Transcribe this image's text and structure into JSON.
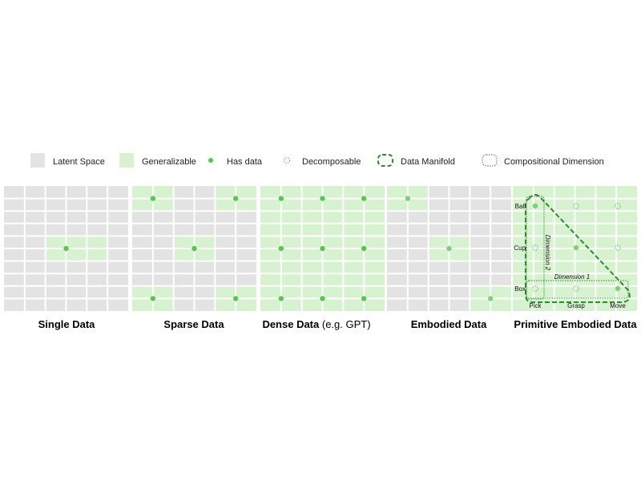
{
  "legend": {
    "latent_space": "Latent Space",
    "generalizable": "Generalizable",
    "has_data": "Has data",
    "decomposable": "Decomposable",
    "data_manifold": "Data Manifold",
    "compositional_dimension": "Compositional Dimension"
  },
  "colors": {
    "latent": "#e3e3e3",
    "generalizable": "#d6f2cf",
    "dot": "#52c84f",
    "dot_light": "#7fd175",
    "manifold": "#2e8b2e",
    "grid_line": "#ffffff"
  },
  "panels": [
    {
      "id": "single",
      "caption": "Single Data",
      "caption_suffix": "",
      "green_rects": [
        [
          2,
          4,
          3,
          2
        ]
      ],
      "dots": [
        [
          3,
          5
        ]
      ]
    },
    {
      "id": "sparse",
      "caption": "Sparse Data",
      "caption_suffix": "",
      "green_rects": [
        [
          0,
          0,
          2,
          2
        ],
        [
          4,
          0,
          2,
          2
        ],
        [
          2,
          4,
          2,
          2
        ],
        [
          0,
          8,
          2,
          2
        ],
        [
          4,
          8,
          2,
          2
        ]
      ],
      "dots": [
        [
          1,
          1
        ],
        [
          5,
          1
        ],
        [
          3,
          5
        ],
        [
          1,
          9
        ],
        [
          5,
          9
        ]
      ]
    },
    {
      "id": "dense",
      "caption": "Dense Data",
      "caption_suffix": " (e.g. GPT)",
      "green_rects": [
        [
          0,
          0,
          6,
          10
        ]
      ],
      "dots": [
        [
          1,
          1
        ],
        [
          3,
          1
        ],
        [
          5,
          1
        ],
        [
          1,
          5
        ],
        [
          3,
          5
        ],
        [
          5,
          5
        ],
        [
          1,
          9
        ],
        [
          3,
          9
        ],
        [
          5,
          9
        ]
      ]
    },
    {
      "id": "embodied",
      "caption": "Embodied Data",
      "caption_suffix": "",
      "green_rects": [
        [
          0,
          0,
          2,
          2
        ],
        [
          2,
          4,
          2,
          2
        ],
        [
          4,
          8,
          2,
          2
        ]
      ],
      "dots": [
        [
          1,
          1
        ],
        [
          3,
          5
        ],
        [
          5,
          9
        ]
      ]
    },
    {
      "id": "primitive",
      "caption": "Primitive Embodied Data",
      "caption_suffix": "",
      "rows": [
        "Ball",
        "Cup",
        "Box"
      ],
      "cols": [
        "Pick",
        "Grasp",
        "Move"
      ],
      "dimension_1": "Dimension 1",
      "dimension_2": "Dimension 2",
      "filled_dots": [
        [
          0,
          0
        ],
        [
          1,
          1
        ],
        [
          2,
          2
        ]
      ],
      "decomposable_dots": [
        [
          1,
          0
        ],
        [
          2,
          0
        ],
        [
          0,
          1
        ],
        [
          2,
          1
        ],
        [
          0,
          2
        ],
        [
          1,
          2
        ]
      ]
    }
  ]
}
